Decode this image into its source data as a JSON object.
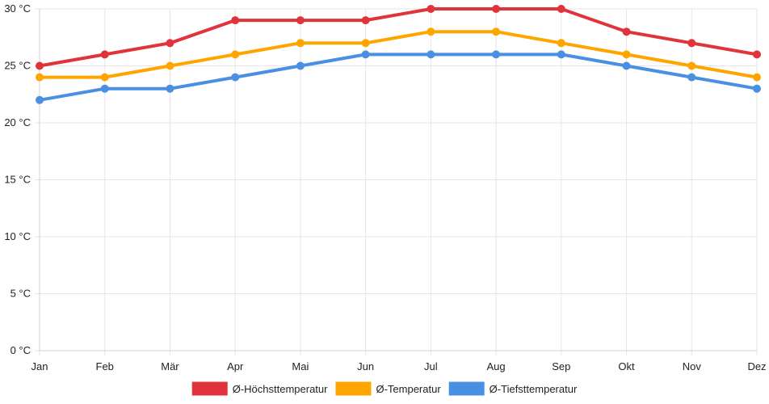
{
  "chart_data": {
    "type": "line",
    "categories": [
      "Jan",
      "Feb",
      "Mär",
      "Apr",
      "Mai",
      "Jun",
      "Jul",
      "Aug",
      "Sep",
      "Okt",
      "Nov",
      "Dez"
    ],
    "y_unit": "°C",
    "ylim": [
      0,
      30
    ],
    "yticks": [
      0,
      5,
      10,
      15,
      20,
      25,
      30
    ],
    "grid": true,
    "legend_position": "bottom",
    "series": [
      {
        "name": "Ø-Höchsttemperatur",
        "color": "#e0333c",
        "values": [
          25,
          26,
          27,
          29,
          29,
          29,
          30,
          30,
          30,
          28,
          27,
          26
        ]
      },
      {
        "name": "Ø-Temperatur",
        "color": "#ffa500",
        "values": [
          24,
          24,
          25,
          26,
          27,
          27,
          28,
          28,
          27,
          26,
          25,
          24
        ]
      },
      {
        "name": "Ø-Tiefsttemperatur",
        "color": "#4a90e2",
        "values": [
          22,
          23,
          23,
          24,
          25,
          26,
          26,
          26,
          26,
          25,
          24,
          23
        ]
      }
    ]
  }
}
